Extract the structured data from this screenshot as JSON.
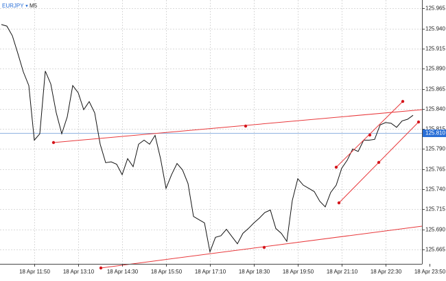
{
  "chart_data": {
    "type": "line",
    "symbol": "EURJPY",
    "timeframe": "M5",
    "categories": [
      null,
      null,
      null,
      null,
      null,
      null,
      "18 Apr 11:50",
      null,
      null,
      null,
      null,
      null,
      null,
      null,
      "18 Apr 13:10",
      null,
      null,
      null,
      null,
      null,
      null,
      null,
      "18 Apr 14:30",
      null,
      null,
      null,
      null,
      null,
      null,
      null,
      "18 Apr 15:50",
      null,
      null,
      null,
      null,
      null,
      null,
      null,
      "18 Apr 17:10",
      null,
      null,
      null,
      null,
      null,
      null,
      null,
      "18 Apr 18:30",
      null,
      null,
      null,
      null,
      null,
      null,
      null,
      "18 Apr 19:50",
      null,
      null,
      null,
      null,
      null,
      null,
      null,
      "18 Apr 21:10",
      null,
      null,
      null,
      null,
      null,
      null,
      null,
      "18 Apr 22:30",
      null,
      null,
      null,
      null,
      null,
      null,
      null,
      "18 Apr 23:50"
    ],
    "values": [
      125.945,
      125.943,
      125.931,
      125.909,
      125.886,
      125.869,
      125.801,
      125.809,
      125.887,
      125.871,
      125.835,
      125.809,
      125.83,
      125.869,
      125.86,
      125.839,
      125.849,
      125.835,
      125.796,
      125.773,
      125.774,
      125.771,
      125.758,
      125.778,
      125.768,
      125.796,
      125.801,
      125.796,
      125.807,
      125.778,
      125.741,
      125.758,
      125.772,
      125.764,
      125.747,
      125.706,
      125.702,
      125.698,
      125.662,
      125.68,
      125.682,
      125.69,
      125.681,
      125.672,
      125.685,
      125.691,
      125.698,
      125.704,
      125.711,
      125.714,
      125.691,
      125.685,
      125.675,
      125.726,
      125.753,
      125.745,
      125.741,
      125.737,
      125.725,
      125.718,
      125.736,
      125.745,
      125.766,
      125.776,
      125.79,
      125.787,
      125.801,
      125.801,
      125.802,
      125.82,
      125.823,
      125.822,
      125.817,
      125.825,
      125.827,
      125.832,
      null,
      null,
      null
    ],
    "color": "#111111",
    "ylim": [
      125.647,
      125.9755
    ],
    "yticks": [
      125.965,
      {
        "value": 125.94,
        "label": "125.940"
      },
      125.915,
      {
        "value": 125.89,
        "label": "125.890"
      },
      125.865,
      {
        "value": 125.84,
        "label": "125.840"
      },
      125.815,
      {
        "value": 125.79,
        "label": "125.790"
      },
      125.765,
      {
        "value": 125.74,
        "label": "125.740"
      },
      125.715,
      {
        "value": 125.69,
        "label": "125.690"
      },
      125.665
    ],
    "current_price": {
      "value": 125.81,
      "label": "125.810"
    },
    "grid": true
  }
}
